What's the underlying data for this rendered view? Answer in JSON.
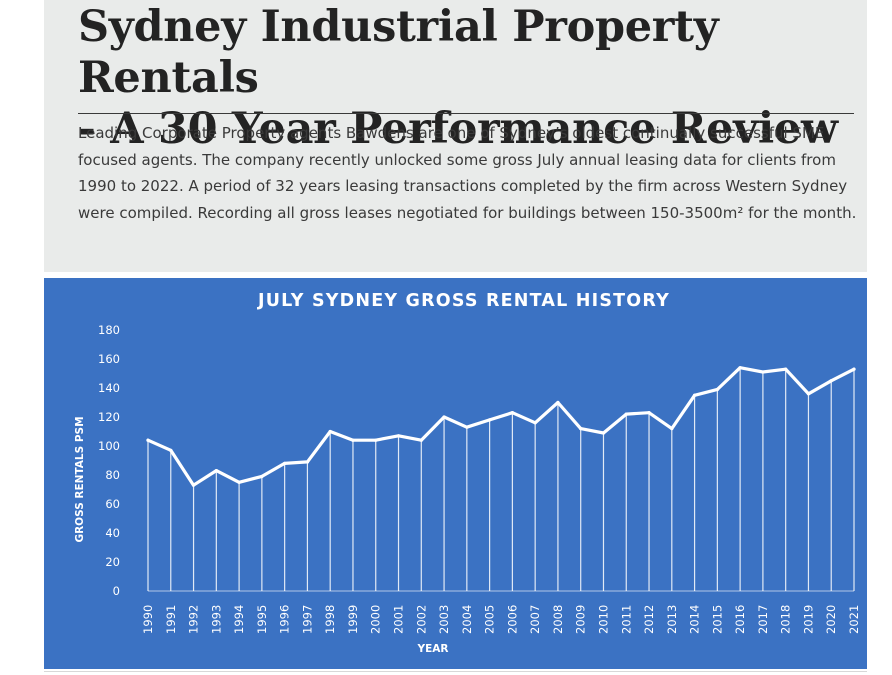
{
  "article": {
    "title_line1": "Sydney Industrial Property Rentals",
    "title_line2": "- A 30 Year Performance Review",
    "intro": "Leading Corporate Property agents Bawdens are one of Sydney’s oldest continually successful SME focused agents. The company recently unlocked some gross July annual leasing data for clients from 1990 to 2022. A period of 32 years leasing transactions completed by the firm across Western Sydney were compiled. Recording all gross leases negotiated for buildings between 150-3500m² for the month."
  },
  "colors": {
    "header_bg": "#e9ebea",
    "chart_bg": "#3b72c3",
    "line": "#ffffff"
  },
  "chart_data": {
    "type": "line",
    "title": "JULY SYDNEY GROSS RENTAL HISTORY",
    "xlabel": "YEAR",
    "ylabel": "GROSS RENTALS PSM",
    "ylim": [
      0,
      180
    ],
    "yticks": [
      0,
      20,
      40,
      60,
      80,
      100,
      120,
      140,
      160,
      180
    ],
    "grid": false,
    "drop_lines": true,
    "categories": [
      "1990",
      "1991",
      "1992",
      "1993",
      "1994",
      "1995",
      "1996",
      "1997",
      "1998",
      "1999",
      "2000",
      "2001",
      "2002",
      "2003",
      "2004",
      "2005",
      "2006",
      "2007",
      "2008",
      "2009",
      "2010",
      "2011",
      "2012",
      "2013",
      "2014",
      "2015",
      "2016",
      "2017",
      "2018",
      "2019",
      "2020",
      "2021"
    ],
    "values": [
      104,
      97,
      73,
      83,
      75,
      79,
      88,
      89,
      110,
      104,
      104,
      107,
      104,
      120,
      113,
      118,
      123,
      116,
      130,
      112,
      109,
      122,
      123,
      112,
      135,
      139,
      154,
      151,
      153,
      136,
      145,
      153
    ]
  }
}
